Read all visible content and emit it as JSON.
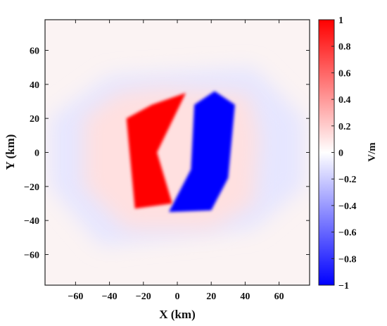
{
  "chart_data": {
    "type": "heatmap",
    "title": "",
    "xlabel": "X (km)",
    "ylabel": "Y (km)",
    "xlim": [
      -78,
      78
    ],
    "ylim": [
      -78,
      78
    ],
    "xticks": [
      -60,
      -40,
      -20,
      0,
      20,
      40,
      60
    ],
    "yticks": [
      -60,
      -40,
      -20,
      0,
      20,
      40,
      60
    ],
    "colorbar": {
      "label": "V/m",
      "range": [
        -1,
        1
      ],
      "ticks": [
        1,
        0.8,
        0.6,
        0.4,
        0.2,
        0,
        -0.2,
        -0.4,
        -0.6,
        -0.8,
        -1
      ],
      "tick_labels": [
        "1",
        "0.8",
        "0.6",
        "0.4",
        "0.2",
        "0",
        "−0.2",
        "−0.4",
        "−0.6",
        "−0.8",
        "−1"
      ],
      "colormap": "blue-white-red",
      "color_min": "#0000ff",
      "color_mid": "#ffffff",
      "color_max": "#ff0000"
    },
    "regions": [
      {
        "name": "positive lobe",
        "value": 1.0,
        "polygon": [
          [
            -15,
            28
          ],
          [
            5,
            35
          ],
          [
            -12,
            0
          ],
          [
            -3,
            -30
          ],
          [
            -25,
            -33
          ],
          [
            -30,
            20
          ]
        ]
      },
      {
        "name": "negative lobe",
        "value": -1.0,
        "polygon": [
          [
            22,
            36
          ],
          [
            34,
            28
          ],
          [
            30,
            -15
          ],
          [
            20,
            -34
          ],
          [
            -5,
            -35
          ],
          [
            8,
            -10
          ],
          [
            10,
            28
          ]
        ]
      },
      {
        "name": "positive halo",
        "value": 0.12,
        "polygon": [
          [
            -10,
            38
          ],
          [
            42,
            34
          ],
          [
            48,
            10
          ],
          [
            45,
            -30
          ],
          [
            20,
            -45
          ],
          [
            -30,
            -45
          ],
          [
            -55,
            -20
          ],
          [
            -55,
            20
          ],
          [
            -35,
            35
          ]
        ]
      },
      {
        "name": "negative halo",
        "value": -0.1,
        "polygon": [
          [
            -40,
            45
          ],
          [
            -75,
            20
          ],
          [
            -75,
            -20
          ],
          [
            -45,
            -55
          ],
          [
            45,
            -45
          ],
          [
            75,
            -20
          ],
          [
            75,
            20
          ],
          [
            45,
            50
          ]
        ]
      }
    ]
  }
}
